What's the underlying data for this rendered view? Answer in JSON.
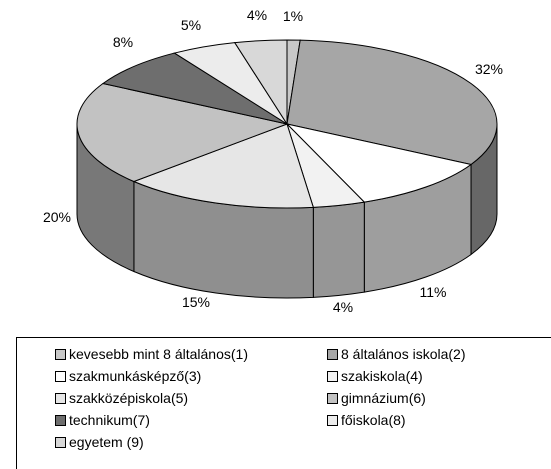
{
  "chart_data": {
    "type": "pie",
    "title": "",
    "categories": [
      "kevesebb mint 8 általános(1)",
      "8 általános iskola(2)",
      "szakmunkásképző(3)",
      "szakiskola(4)",
      "szakközépiskola(5)",
      "gimnázium(6)",
      "technikum(7)",
      "főiskola(8)",
      "egyetem (9)"
    ],
    "values": [
      1,
      32,
      11,
      4,
      15,
      20,
      8,
      5,
      4
    ],
    "value_labels": [
      "1%",
      "32%",
      "11%",
      "4%",
      "15%",
      "20%",
      "8%",
      "5%",
      "4%"
    ],
    "colors": [
      "#c8c8c8",
      "#a6a6a6",
      "#ffffff",
      "#f2f2f2",
      "#e6e6e6",
      "#c2c2c2",
      "#6e6e6e",
      "#ececec",
      "#d8d8d8"
    ],
    "style": "3d-pie",
    "legend_position": "bottom"
  }
}
